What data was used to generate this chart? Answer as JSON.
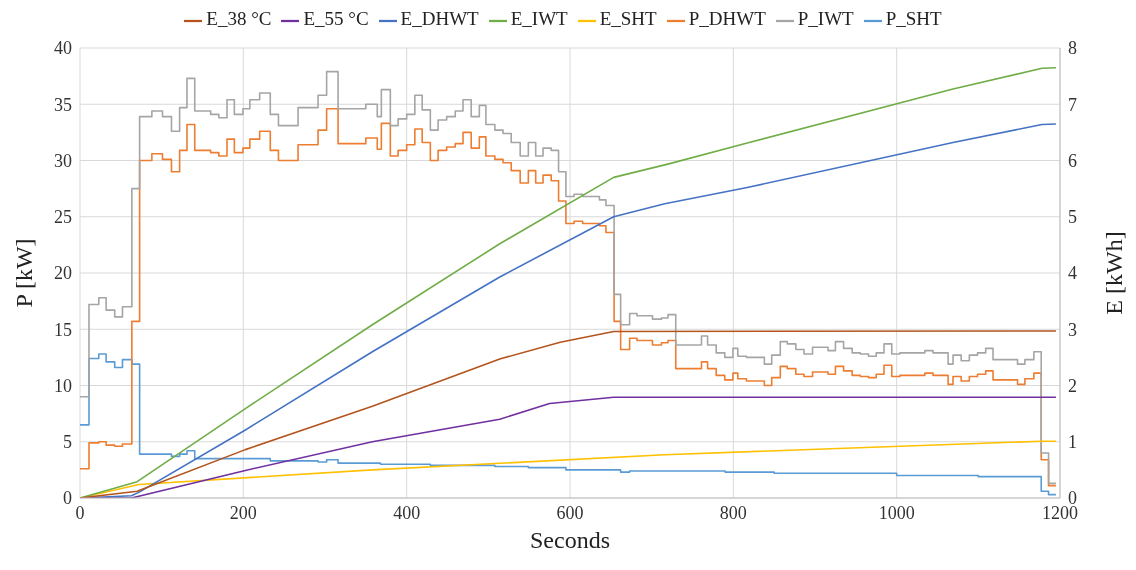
{
  "chart_data": {
    "type": "line",
    "xlabel": "Seconds",
    "ylabel": "P [kW]",
    "y2label": "E [kWh]",
    "xlim": [
      0,
      1200
    ],
    "xticks": [
      0,
      200,
      400,
      600,
      800,
      1000,
      1200
    ],
    "ylim": [
      0,
      40
    ],
    "yticks": [
      0,
      5,
      10,
      15,
      20,
      25,
      30,
      35,
      40
    ],
    "y2lim": [
      0,
      8
    ],
    "y2ticks": [
      0,
      1,
      2,
      3,
      4,
      5,
      6,
      7,
      8
    ],
    "grid": true,
    "legend": "top",
    "marker": "none",
    "line_style": "solid",
    "series": [
      {
        "name": "P_SHT",
        "type": "step",
        "color": "#5b9bd5",
        "x": [
          0,
          11,
          23,
          32,
          42.5,
          52,
          63.5,
          73,
          112,
          122,
          131,
          140.5,
          233,
          291.5,
          302,
          316,
          368,
          429,
          508,
          549,
          595,
          662,
          673,
          790,
          850,
          1000,
          1100,
          1177,
          1186,
          1195
        ],
        "values": [
          6.5,
          12.4,
          12.8,
          12.1,
          11.6,
          12.3,
          11.9,
          3.9,
          3.7,
          3.9,
          4.2,
          3.5,
          3.3,
          3.2,
          3.4,
          3.1,
          3.0,
          2.9,
          2.8,
          2.7,
          2.5,
          2.3,
          2.4,
          2.3,
          2.2,
          2.0,
          1.9,
          0.6,
          0.3,
          0.3
        ]
      },
      {
        "name": "P_DHWT",
        "type": "step",
        "color": "#ed7d31",
        "x": [
          0,
          11,
          23,
          32,
          42.5,
          52,
          63.5,
          73,
          88,
          101,
          112,
          122,
          131,
          140.5,
          160,
          170,
          180,
          189,
          199.5,
          208,
          220,
          233,
          243,
          267,
          291.5,
          302,
          316,
          350,
          364,
          369,
          380,
          389.5,
          400,
          410,
          419,
          429,
          438.5,
          449,
          459.5,
          469,
          479,
          489,
          497,
          508,
          518,
          528,
          539,
          549,
          558,
          567,
          577,
          586,
          595,
          605,
          615.5,
          636,
          644,
          654,
          662,
          673,
          682,
          701,
          712,
          720,
          729.5,
          761,
          768.5,
          779,
          789.5,
          799.5,
          805.5,
          816,
          838,
          847,
          857.5,
          866,
          876.5,
          886.5,
          897,
          916,
          925,
          935,
          945.5,
          955.5,
          965.5,
          975,
          984.5,
          994,
          1004,
          1034.5,
          1044.5,
          1063,
          1069,
          1079,
          1089,
          1099,
          1109,
          1118,
          1148,
          1157,
          1168,
          1177,
          1186,
          1195
        ],
        "values": [
          2.6,
          4.9,
          5.0,
          4.7,
          4.6,
          4.8,
          15.7,
          30.0,
          30.6,
          30.1,
          29.0,
          30.9,
          33.2,
          30.9,
          30.7,
          30.4,
          31.9,
          30.7,
          31.1,
          31.9,
          32.6,
          30.9,
          30.0,
          31.4,
          32.7,
          34.6,
          31.5,
          32.0,
          31.0,
          33.3,
          30.4,
          30.9,
          31.4,
          32.8,
          31.6,
          30.0,
          30.9,
          31.2,
          31.5,
          32.5,
          31.1,
          32.1,
          30.4,
          30.1,
          29.8,
          29.1,
          28.0,
          29.1,
          28.0,
          28.7,
          28.2,
          26.4,
          24.4,
          24.6,
          24.4,
          24.2,
          23.6,
          15.7,
          13.2,
          14.2,
          14.0,
          13.6,
          13.8,
          14.0,
          11.5,
          12.1,
          11.5,
          10.9,
          10.5,
          11.1,
          10.6,
          10.4,
          10.0,
          10.7,
          11.7,
          11.5,
          11.0,
          10.8,
          11.2,
          11.0,
          11.7,
          11.3,
          10.9,
          10.8,
          10.7,
          11.0,
          11.8,
          10.8,
          10.9,
          11.1,
          10.9,
          10.1,
          10.8,
          10.4,
          10.8,
          11.0,
          11.3,
          10.5,
          10.1,
          10.6,
          11.1,
          3.4,
          1.1,
          1.1
        ]
      },
      {
        "name": "P_IWT",
        "type": "step",
        "color": "#a5a5a5",
        "x": [
          0,
          11,
          23,
          32,
          42.5,
          52,
          63.5,
          73,
          88,
          101,
          112,
          122,
          131,
          140.5,
          160,
          170,
          180,
          189,
          199.5,
          208,
          220,
          233,
          243,
          267,
          291.5,
          302,
          316,
          350,
          364,
          369,
          380,
          389.5,
          400,
          410,
          419,
          429,
          438.5,
          449,
          459.5,
          469,
          479,
          489,
          497,
          508,
          518,
          528,
          539,
          549,
          558,
          567,
          577,
          586,
          595,
          605,
          615.5,
          636,
          644,
          654,
          662,
          673,
          682,
          701,
          712,
          720,
          729.5,
          761,
          768.5,
          779,
          789.5,
          799.5,
          805.5,
          816,
          838,
          847,
          857.5,
          866,
          876.5,
          886.5,
          897,
          916,
          925,
          935,
          945.5,
          955.5,
          965.5,
          975,
          984.5,
          994,
          1004,
          1034.5,
          1044.5,
          1063,
          1069,
          1079,
          1089,
          1099,
          1109,
          1118,
          1148,
          1157,
          1168,
          1177,
          1186,
          1195
        ],
        "values": [
          9.0,
          17.2,
          17.8,
          16.7,
          16.1,
          17.0,
          27.5,
          33.9,
          34.4,
          33.9,
          32.6,
          34.7,
          37.3,
          34.4,
          34.1,
          33.8,
          35.4,
          34.1,
          34.6,
          35.4,
          36.0,
          34.1,
          33.1,
          34.7,
          35.8,
          37.9,
          34.6,
          35.0,
          33.9,
          36.3,
          33.1,
          33.7,
          34.1,
          35.8,
          34.5,
          32.7,
          33.6,
          33.9,
          34.4,
          35.4,
          33.9,
          34.9,
          33.2,
          32.7,
          32.4,
          31.6,
          30.4,
          31.6,
          30.4,
          31.1,
          30.9,
          29.0,
          26.8,
          27.0,
          26.8,
          26.5,
          26.0,
          18.1,
          15.4,
          16.4,
          16.2,
          15.9,
          16.0,
          16.3,
          13.6,
          14.4,
          13.6,
          12.9,
          12.5,
          13.3,
          12.6,
          12.5,
          11.9,
          12.7,
          13.9,
          13.7,
          13.2,
          12.8,
          13.4,
          13.1,
          13.9,
          13.3,
          12.9,
          12.8,
          12.6,
          12.9,
          13.7,
          12.8,
          12.9,
          13.1,
          12.9,
          11.9,
          12.7,
          12.2,
          12.7,
          12.9,
          13.3,
          12.3,
          11.9,
          12.3,
          13.0,
          4.0,
          1.3,
          1.3
        ]
      },
      {
        "name": "E_SHT",
        "type": "line",
        "axis": "y2",
        "color": "#ffc000",
        "x": [
          0,
          72,
          358,
          716,
          1178,
          1195
        ],
        "values": [
          0,
          0.24,
          0.5,
          0.77,
          1.01,
          1.01
        ]
      },
      {
        "name": "E_DHWT",
        "type": "line",
        "axis": "y2",
        "color": "#4472c4",
        "x": [
          0,
          63,
          72,
          202.5,
          358,
          514,
          653.5,
          716,
          817,
          1069,
          1178,
          1195
        ],
        "values": [
          0,
          0.04,
          0.1,
          1.21,
          2.6,
          3.93,
          5.0,
          5.23,
          5.52,
          6.32,
          6.64,
          6.65
        ]
      },
      {
        "name": "E_IWT",
        "type": "line",
        "axis": "y2",
        "color": "#70ad47",
        "x": [
          0,
          70,
          202.5,
          358,
          514,
          653.5,
          721,
          817,
          1069,
          1178,
          1195
        ],
        "values": [
          0,
          0.29,
          1.59,
          3.08,
          4.52,
          5.7,
          5.94,
          6.31,
          7.27,
          7.64,
          7.65
        ]
      },
      {
        "name": "E_55 °C",
        "type": "line",
        "axis": "y2",
        "color": "#7030a0",
        "x": [
          0,
          63,
          202.5,
          358,
          514,
          575,
          653.5,
          1195
        ],
        "values": [
          0,
          0,
          0.49,
          1.0,
          1.4,
          1.68,
          1.79,
          1.79
        ]
      },
      {
        "name": "E_38 °C",
        "type": "line",
        "axis": "y2",
        "color": "#b4541c",
        "x": [
          0,
          70,
          202.5,
          358,
          514,
          588,
          653.5,
          1195
        ],
        "values": [
          0,
          0.12,
          0.86,
          1.63,
          2.47,
          2.77,
          2.96,
          2.97
        ]
      }
    ]
  }
}
